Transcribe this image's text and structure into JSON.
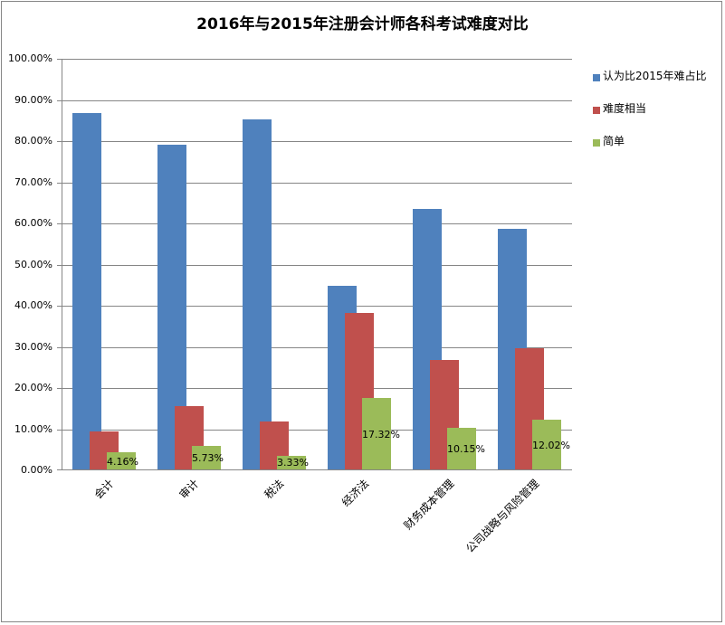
{
  "chart_data": {
    "type": "bar",
    "title": "2016年与2015年注册会计师各科考试难度对比",
    "xlabel": "",
    "ylabel": "",
    "ylim": [
      0,
      100
    ],
    "yticks": [
      "0.00%",
      "10.00%",
      "20.00%",
      "30.00%",
      "40.00%",
      "50.00%",
      "60.00%",
      "70.00%",
      "80.00%",
      "90.00%",
      "100.00%"
    ],
    "grid": true,
    "legend_position": "right",
    "categories": [
      "会计",
      "审计",
      "税法",
      "经济法",
      "财务成本管理",
      "公司战略与风险管理"
    ],
    "series": [
      {
        "name": "认为比2015年难占比",
        "color": "#4F81BD",
        "values": [
          86.6,
          78.9,
          85.1,
          44.6,
          63.3,
          58.5
        ]
      },
      {
        "name": "难度相当",
        "color": "#C0504D",
        "values": [
          9.2,
          15.4,
          11.6,
          38.0,
          26.6,
          29.5
        ]
      },
      {
        "name": "简单",
        "color": "#9BBB59",
        "values": [
          4.16,
          5.73,
          3.33,
          17.32,
          10.15,
          12.02
        ]
      }
    ],
    "data_labels": {
      "简单": [
        "4.16%",
        "5.73%",
        "3.33%",
        "17.32%",
        "10.15%",
        "12.02%"
      ]
    }
  }
}
